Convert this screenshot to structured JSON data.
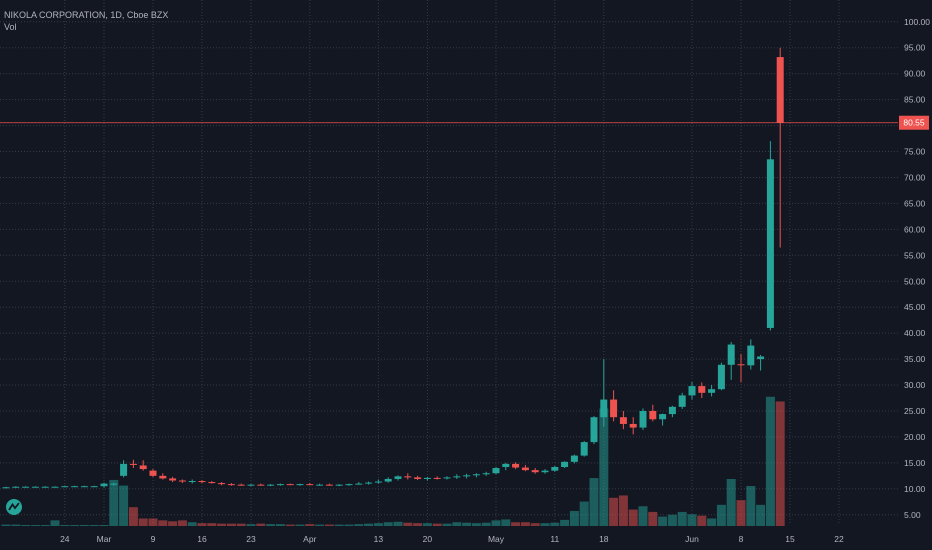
{
  "legend": {
    "title": "NIKOLA CORPORATION, 1D, Cboe BZX",
    "vol_label": "Vol"
  },
  "logo_icon": "tradingview-logo-icon",
  "colors": {
    "bg": "#131722",
    "grid": "#363a45",
    "text": "#b2b5be",
    "up": "#26a69a",
    "down": "#ef5350",
    "up_vol": "#26a69a",
    "down_vol": "#ef5350",
    "price_line": "#ef5350"
  },
  "last_price": "80.55",
  "chart_data": {
    "type": "candlestick",
    "y_ticks": [
      "5.00",
      "10.00",
      "15.00",
      "20.00",
      "25.00",
      "30.00",
      "35.00",
      "40.00",
      "45.00",
      "50.00",
      "55.00",
      "60.00",
      "65.00",
      "70.00",
      "75.00",
      "80.00",
      "85.00",
      "90.00",
      "95.00",
      "100.00"
    ],
    "x_ticks": [
      {
        "label": "24",
        "pos": 6
      },
      {
        "label": "Mar",
        "pos": 10
      },
      {
        "label": "9",
        "pos": 15
      },
      {
        "label": "16",
        "pos": 20
      },
      {
        "label": "23",
        "pos": 25
      },
      {
        "label": "Apr",
        "pos": 31
      },
      {
        "label": "13",
        "pos": 38
      },
      {
        "label": "20",
        "pos": 43
      },
      {
        "label": "May",
        "pos": 50
      },
      {
        "label": "11",
        "pos": 56
      },
      {
        "label": "18",
        "pos": 61
      },
      {
        "label": "Jun",
        "pos": 70
      },
      {
        "label": "8",
        "pos": 75
      },
      {
        "label": "15",
        "pos": 80
      },
      {
        "label": "22",
        "pos": 85
      }
    ],
    "candles": [
      [
        10.2,
        10.4,
        10.1,
        10.3,
        0.3
      ],
      [
        10.3,
        10.5,
        10.2,
        10.4,
        0.3
      ],
      [
        10.4,
        10.5,
        10.3,
        10.4,
        0.2
      ],
      [
        10.4,
        10.5,
        10.3,
        10.4,
        0.2
      ],
      [
        10.4,
        10.5,
        10.3,
        10.4,
        0.2
      ],
      [
        10.4,
        10.5,
        10.3,
        10.4,
        1.2
      ],
      [
        10.4,
        10.6,
        10.3,
        10.5,
        0.2
      ],
      [
        10.5,
        10.6,
        10.4,
        10.5,
        0.2
      ],
      [
        10.5,
        10.6,
        10.4,
        10.5,
        0.2
      ],
      [
        10.5,
        10.6,
        10.4,
        10.5,
        0.2
      ],
      [
        10.5,
        11.2,
        10.2,
        11.0,
        0.2
      ],
      [
        10.8,
        11.2,
        10.6,
        11.0,
        9.8
      ],
      [
        12.5,
        15.5,
        12.2,
        14.8,
        8.6
      ],
      [
        14.8,
        15.6,
        14.0,
        14.6,
        4.0
      ],
      [
        14.5,
        15.5,
        13.5,
        13.8,
        1.6
      ],
      [
        13.5,
        13.8,
        12.3,
        12.5,
        1.6
      ],
      [
        12.5,
        13.0,
        11.8,
        12.0,
        1.2
      ],
      [
        12.0,
        12.3,
        11.3,
        11.6,
        1.0
      ],
      [
        11.6,
        11.8,
        11.1,
        11.4,
        1.2
      ],
      [
        11.4,
        11.8,
        11.0,
        11.5,
        0.8
      ],
      [
        11.5,
        11.7,
        11.1,
        11.3,
        0.6
      ],
      [
        11.3,
        11.5,
        11.0,
        11.1,
        0.6
      ],
      [
        11.1,
        11.3,
        10.7,
        10.9,
        0.5
      ],
      [
        10.9,
        11.1,
        10.6,
        10.8,
        0.5
      ],
      [
        10.8,
        11.0,
        10.6,
        10.7,
        0.5
      ],
      [
        10.7,
        10.9,
        10.5,
        10.8,
        0.4
      ],
      [
        10.8,
        11.0,
        10.6,
        10.7,
        0.5
      ],
      [
        10.7,
        10.9,
        10.5,
        10.8,
        0.4
      ],
      [
        10.8,
        11.0,
        10.6,
        10.9,
        0.4
      ],
      [
        10.9,
        11.0,
        10.7,
        10.8,
        0.3
      ],
      [
        10.8,
        11.0,
        10.6,
        10.9,
        0.3
      ],
      [
        10.9,
        11.1,
        10.7,
        10.8,
        0.4
      ],
      [
        10.8,
        11.0,
        10.6,
        10.8,
        0.3
      ],
      [
        10.8,
        11.0,
        10.6,
        10.7,
        0.3
      ],
      [
        10.7,
        10.9,
        10.5,
        10.8,
        0.3
      ],
      [
        10.8,
        11.0,
        10.6,
        10.9,
        0.3
      ],
      [
        10.9,
        11.3,
        10.8,
        11.0,
        0.4
      ],
      [
        11.0,
        11.4,
        10.8,
        11.2,
        0.5
      ],
      [
        11.2,
        11.8,
        11.0,
        11.4,
        0.6
      ],
      [
        11.4,
        12.2,
        11.2,
        11.9,
        0.8
      ],
      [
        11.9,
        12.6,
        11.6,
        12.4,
        0.9
      ],
      [
        12.4,
        13.0,
        11.8,
        12.2,
        0.7
      ],
      [
        12.2,
        12.5,
        11.7,
        11.9,
        0.6
      ],
      [
        11.9,
        12.3,
        11.6,
        12.1,
        0.6
      ],
      [
        12.1,
        12.4,
        11.8,
        12.0,
        0.5
      ],
      [
        12.0,
        12.4,
        11.8,
        12.2,
        0.5
      ],
      [
        12.2,
        12.8,
        11.9,
        12.4,
        0.8
      ],
      [
        12.4,
        12.9,
        12.0,
        12.6,
        0.7
      ],
      [
        12.6,
        13.0,
        12.2,
        12.8,
        0.6
      ],
      [
        12.8,
        13.3,
        12.5,
        13.0,
        0.7
      ],
      [
        13.0,
        14.2,
        12.8,
        14.0,
        1.2
      ],
      [
        14.2,
        15.0,
        13.6,
        14.8,
        1.4
      ],
      [
        14.8,
        15.1,
        13.8,
        14.1,
        0.8
      ],
      [
        14.1,
        14.6,
        13.4,
        13.6,
        0.8
      ],
      [
        13.6,
        14.0,
        12.9,
        13.2,
        0.6
      ],
      [
        13.2,
        13.8,
        12.9,
        13.5,
        0.6
      ],
      [
        13.5,
        14.4,
        13.3,
        14.2,
        0.7
      ],
      [
        14.2,
        15.3,
        14.0,
        15.2,
        1.3
      ],
      [
        15.2,
        16.6,
        14.9,
        16.4,
        3.2
      ],
      [
        16.4,
        19.2,
        16.2,
        19.0,
        5.2
      ],
      [
        19.0,
        24.0,
        18.6,
        23.8,
        10.2
      ],
      [
        23.8,
        35.0,
        22.0,
        27.2,
        25.0
      ],
      [
        27.2,
        29.0,
        23.0,
        23.8,
        6.0
      ],
      [
        23.8,
        25.0,
        21.5,
        22.5,
        6.5
      ],
      [
        22.5,
        23.8,
        20.5,
        21.8,
        3.5
      ],
      [
        21.8,
        25.5,
        21.3,
        25.0,
        4.2
      ],
      [
        25.0,
        26.2,
        23.0,
        23.4,
        3.0
      ],
      [
        23.4,
        24.5,
        22.2,
        24.4,
        2.0
      ],
      [
        24.4,
        26.0,
        23.8,
        25.8,
        2.4
      ],
      [
        25.8,
        28.5,
        25.4,
        28.0,
        3.0
      ],
      [
        28.0,
        30.6,
        27.2,
        29.8,
        2.5
      ],
      [
        29.8,
        30.5,
        27.5,
        28.5,
        2.2
      ],
      [
        28.5,
        30.0,
        27.8,
        29.2,
        1.6
      ],
      [
        29.2,
        34.3,
        29.0,
        33.9,
        4.5
      ],
      [
        33.9,
        38.3,
        31.0,
        37.8,
        10.0
      ],
      [
        34.0,
        36.0,
        30.5,
        33.8,
        5.5
      ],
      [
        33.8,
        38.8,
        33.0,
        37.6,
        8.5
      ],
      [
        35.0,
        35.8,
        32.8,
        35.5,
        4.5
      ],
      [
        41.0,
        77.0,
        40.5,
        73.5,
        27.5
      ],
      [
        93.2,
        95.0,
        56.5,
        80.55,
        26.5
      ]
    ]
  }
}
